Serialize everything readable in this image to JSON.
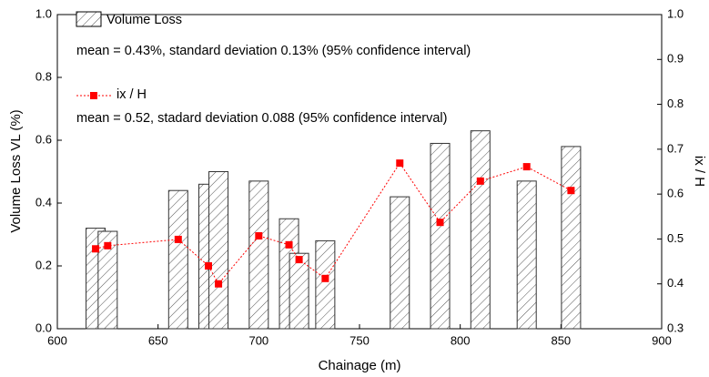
{
  "chart_data": {
    "type": "bar+line",
    "xlabel": "Chainage (m)",
    "ylabel": "Volume Loss VL (%)",
    "y2label": "ix / H",
    "x": [
      619,
      625,
      660,
      675,
      680,
      700,
      715,
      720,
      733,
      770,
      790,
      810,
      833,
      855
    ],
    "series": [
      {
        "name": "Volume Loss",
        "type": "bar",
        "color": "#333333",
        "values": [
          0.32,
          0.31,
          0.44,
          0.46,
          0.5,
          0.47,
          0.35,
          0.24,
          0.28,
          0.42,
          0.59,
          0.63,
          0.47,
          0.58
        ]
      },
      {
        "name": "ix / H",
        "type": "line",
        "axis": "y2",
        "color": "#ff0000",
        "values": [
          0.478,
          0.485,
          0.499,
          0.44,
          0.4,
          0.507,
          0.487,
          0.454,
          0.412,
          0.669,
          0.537,
          0.629,
          0.661,
          0.608
        ]
      }
    ],
    "annotations": [
      "mean = 0.43%, standard deviation 0.13% (95% confidence interval)",
      "mean = 0.52, stadard deviation 0.088 (95% confidence interval)"
    ],
    "xlim": [
      600,
      900
    ],
    "xticks": [
      600,
      650,
      700,
      750,
      800,
      850,
      900
    ],
    "ylim": [
      0,
      1
    ],
    "yticks": [
      {
        "value": 0,
        "label": "0.0"
      },
      0.2,
      0.4,
      0.6,
      0.8,
      {
        "value": 1,
        "label": "1.0"
      }
    ],
    "y2lim": [
      0.3,
      1
    ],
    "y2ticks": [
      0.3,
      0.4,
      0.5,
      0.6,
      0.7,
      0.8,
      0.9,
      {
        "value": 1,
        "label": "1.0"
      }
    ]
  }
}
